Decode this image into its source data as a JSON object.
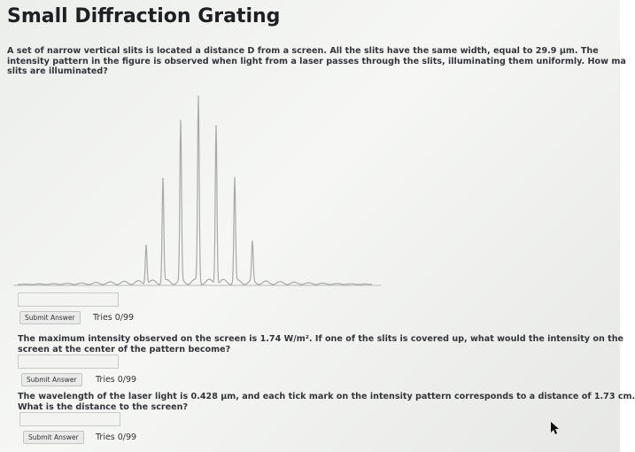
{
  "title": "Small Diffraction Grating",
  "parts": [
    {
      "lines": [
        "A set of narrow vertical slits is located a distance D from a screen. All the slits have the same width, equal to 29.9 μm. The",
        "intensity pattern in the figure is observed when light from a laser passes through the slits, illuminating them uniformly. How ma",
        "slits are illuminated?"
      ],
      "button": "Submit Answer",
      "tries": "Tries 0/99"
    },
    {
      "lines": [
        "The maximum intensity observed on the screen is 1.74 W/m². If one of the slits is covered up, what would the intensity on the",
        "screen at the center of the pattern become?"
      ],
      "button": "Submit Answer",
      "tries": "Tries 0/99"
    },
    {
      "lines": [
        "The wavelength of the laser light is 0.428 μm, and each tick mark on the intensity pattern corresponds to a distance of 1.73 cm.",
        "What is the distance to the screen?"
      ],
      "button": "Submit Answer",
      "tries": "Tries 0/99"
    }
  ]
}
